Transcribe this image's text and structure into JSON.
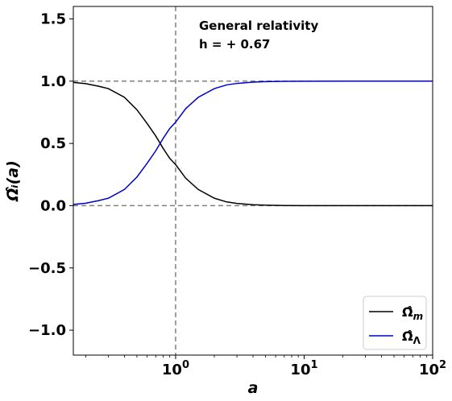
{
  "chart_data": {
    "type": "line",
    "xlabel": "a",
    "ylabel": "Ω̂ᵢ(a)",
    "xscale": "log",
    "xlim": [
      0.16,
      100
    ],
    "ylim": [
      -1.2,
      1.6
    ],
    "xticks": [
      {
        "value": 1,
        "base": "10",
        "exp": "0"
      },
      {
        "value": 10,
        "base": "10",
        "exp": "1"
      },
      {
        "value": 100,
        "base": "10",
        "exp": "2"
      }
    ],
    "yticks": [
      "−1.0",
      "−0.5",
      "0.0",
      "0.5",
      "1.0",
      "1.5"
    ],
    "ytick_values": [
      -1.0,
      -0.5,
      0.0,
      0.5,
      1.0,
      1.5
    ],
    "annotations": {
      "line1": "General relativity",
      "line2": "h  = + 0.67"
    },
    "reference_lines": {
      "horizontal": [
        0,
        1
      ],
      "vertical": [
        1
      ],
      "style": "dashed",
      "color": "#808080"
    },
    "legend": {
      "position": "lower-right"
    },
    "series": [
      {
        "name": "Ω̂m",
        "label_base": "Ω̂",
        "label_sub": "m",
        "color": "#000000",
        "x": [
          0.16,
          0.2,
          0.25,
          0.3,
          0.4,
          0.5,
          0.6,
          0.7,
          0.8,
          0.9,
          1.0,
          1.2,
          1.5,
          2.0,
          2.5,
          3.0,
          4.0,
          5.0,
          7.0,
          10.0,
          20.0,
          50.0,
          100.0
        ],
        "y": [
          0.99,
          0.98,
          0.96,
          0.94,
          0.87,
          0.77,
          0.66,
          0.56,
          0.46,
          0.38,
          0.33,
          0.22,
          0.13,
          0.06,
          0.03,
          0.018,
          0.008,
          0.004,
          0.0015,
          0.0005,
          0.0001,
          0.0,
          0.0
        ]
      },
      {
        "name": "Ω̂Λ",
        "label_base": "Ω̂",
        "label_sub": "Λ",
        "color": "#0000cc",
        "x": [
          0.16,
          0.2,
          0.25,
          0.3,
          0.4,
          0.5,
          0.6,
          0.7,
          0.8,
          0.9,
          1.0,
          1.2,
          1.5,
          2.0,
          2.5,
          3.0,
          4.0,
          5.0,
          7.0,
          10.0,
          20.0,
          50.0,
          100.0
        ],
        "y": [
          0.01,
          0.02,
          0.04,
          0.06,
          0.13,
          0.23,
          0.34,
          0.44,
          0.54,
          0.62,
          0.67,
          0.78,
          0.87,
          0.94,
          0.97,
          0.982,
          0.992,
          0.996,
          0.9985,
          0.9995,
          0.9999,
          1.0,
          1.0
        ]
      }
    ]
  }
}
